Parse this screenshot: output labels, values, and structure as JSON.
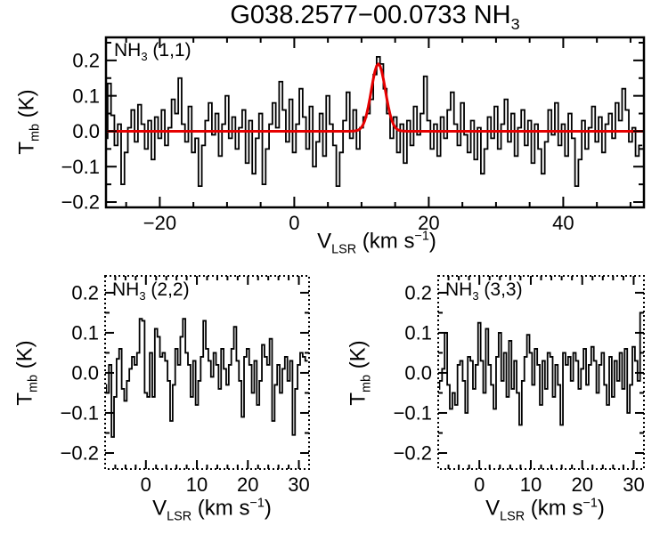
{
  "title": {
    "text": "G038.2577−00.0733 NH",
    "sub": "3"
  },
  "labels": {
    "ylabel": {
      "base": "T",
      "sub": "mb",
      "rest": " (K)"
    },
    "xlabel": {
      "base": "V",
      "sub": "LSR",
      "mid": " (km s",
      "sup": "−1",
      "end": ")"
    }
  },
  "colors": {
    "spectrum": "#000000",
    "fit": "#e60000",
    "background": "#ffffff"
  },
  "chart_data": [
    {
      "id": "nh3_11",
      "type": "line",
      "style": "histogram-step",
      "line_label": {
        "base": "NH",
        "sub": "3",
        "rest": " (1,1)"
      },
      "xlabel": "VLSR (km s-1)",
      "ylabel": "Tmb (K)",
      "xlim": [
        -28,
        52
      ],
      "ylim": [
        -0.215,
        0.265
      ],
      "xticks_major": [
        -20,
        0,
        20,
        40
      ],
      "xtick_minor_step": 5,
      "yticks_major": [
        0.2,
        0.1,
        0.0,
        -0.1,
        -0.2
      ],
      "ytick_minor_step": 0.05,
      "grid": false,
      "x_start": -28,
      "dx": 0.5,
      "values": [
        -0.02,
        0.135,
        0.045,
        -0.04,
        0.02,
        -0.15,
        -0.06,
        0.01,
        0.06,
        -0.03,
        0.075,
        0.02,
        -0.05,
        0.03,
        -0.08,
        0.04,
        -0.02,
        0.06,
        -0.04,
        0.01,
        0.09,
        0.05,
        0.15,
        0.02,
        -0.03,
        0.07,
        -0.06,
        -0.02,
        -0.155,
        -0.04,
        0.03,
        0.08,
        -0.01,
        0.05,
        -0.07,
        0.02,
        0.1,
        -0.02,
        0.04,
        -0.05,
        0.01,
        0.06,
        -0.09,
        0.03,
        -0.12,
        -0.02,
        0.05,
        -0.15,
        -0.05,
        0.02,
        0.08,
        0.01,
        0.14,
        0.06,
        -0.03,
        0.09,
        -0.06,
        0.02,
        0.12,
        0.04,
        -0.05,
        0.07,
        -0.1,
        -0.03,
        0.05,
        -0.07,
        0.1,
        0.02,
        -0.04,
        -0.155,
        -0.06,
        0.03,
        0.11,
        -0.02,
        0.06,
        -0.05,
        0.01,
        0.04,
        0.05,
        0.09,
        0.16,
        0.21,
        0.19,
        0.12,
        0.05,
        -0.02,
        0.04,
        -0.06,
        0.02,
        -0.09,
        0.03,
        -0.04,
        0.07,
        -0.01,
        0.05,
        0.155,
        0.03,
        -0.05,
        0.02,
        -0.07,
        0.04,
        -0.02,
        0.06,
        0.11,
        0.02,
        -0.04,
        0.08,
        -0.01,
        -0.06,
        0.03,
        -0.08,
        0.01,
        -0.12,
        -0.05,
        0.04,
        -0.02,
        0.07,
        -0.05,
        0.02,
        0.09,
        -0.03,
        0.05,
        -0.07,
        0.01,
        0.06,
        -0.04,
        0.03,
        -0.09,
        0.02,
        -0.05,
        -0.12,
        -0.03,
        0.06,
        -0.01,
        0.08,
        -0.04,
        0.02,
        -0.07,
        0.05,
        -0.02,
        -0.155,
        -0.08,
        0.03,
        -0.05,
        0.01,
        0.07,
        -0.03,
        0.04,
        -0.06,
        0.02,
        0.05,
        -0.02,
        0.08,
        0.03,
        0.12,
        0.06,
        -0.03,
        0.01,
        -0.07,
        -0.04
      ],
      "fit": {
        "shape": "gaussian",
        "baseline": 0.0,
        "amplitude": 0.19,
        "center": 12.5,
        "sigma": 1.05
      }
    },
    {
      "id": "nh3_22",
      "type": "line",
      "style": "histogram-step",
      "line_label": {
        "base": "NH",
        "sub": "3",
        "rest": " (2,2)"
      },
      "xlabel": "VLSR (km s-1)",
      "ylabel": "Tmb (K)",
      "xlim": [
        -8,
        32
      ],
      "ylim": [
        -0.24,
        0.242
      ],
      "xticks_major": [
        0,
        10,
        20,
        30
      ],
      "xtick_minor_step": 2,
      "yticks_major": [
        0.2,
        0.1,
        0.0,
        -0.1,
        -0.2
      ],
      "ytick_minor_step": 0.05,
      "grid": false,
      "x_start": -8,
      "dx": 0.5,
      "values": [
        -0.03,
        -0.05,
        0.02,
        -0.16,
        -0.06,
        0.035,
        0.06,
        -0.04,
        -0.07,
        -0.02,
        0.01,
        0.04,
        0.02,
        0.05,
        0.135,
        0.13,
        -0.05,
        -0.06,
        0.05,
        -0.06,
        0.11,
        0.09,
        0.04,
        0.05,
        0.03,
        -0.02,
        -0.12,
        -0.03,
        0.06,
        0.02,
        0.09,
        0.135,
        0.05,
        0.02,
        -0.06,
        0.03,
        -0.08,
        -0.02,
        0.04,
        0.13,
        0.06,
        0.03,
        -0.01,
        0.05,
        0.02,
        -0.04,
        0.06,
        0.01,
        -0.03,
        0.02,
        0.06,
        0.115,
        0.03,
        -0.02,
        -0.11,
        0.04,
        0.06,
        0.02,
        -0.05,
        0.03,
        -0.08,
        -0.02,
        0.07,
        0.04,
        0.02,
        0.085,
        -0.12,
        -0.03,
        0.02,
        -0.05,
        0.01,
        0.04,
        -0.02,
        0.03,
        -0.155,
        -0.04,
        0.02,
        0.05,
        0.04,
        0.03
      ]
    },
    {
      "id": "nh3_33",
      "type": "line",
      "style": "histogram-step",
      "line_label": {
        "base": "NH",
        "sub": "3",
        "rest": " (3,3)"
      },
      "xlabel": "VLSR (km s-1)",
      "ylabel": "Tmb (K)",
      "xlim": [
        -8,
        32
      ],
      "ylim": [
        -0.24,
        0.242
      ],
      "xticks_major": [
        0,
        10,
        20,
        30
      ],
      "xtick_minor_step": 2,
      "yticks_major": [
        0.2,
        0.1,
        0.0,
        -0.1,
        -0.2
      ],
      "ytick_minor_step": 0.05,
      "grid": false,
      "x_start": -8,
      "dx": 0.5,
      "values": [
        -0.04,
        -0.02,
        0.01,
        0.1,
        -0.03,
        -0.09,
        -0.05,
        -0.08,
        0.02,
        0.03,
        -0.02,
        -0.1,
        0.04,
        0.03,
        -0.04,
        0.02,
        0.125,
        0.03,
        -0.05,
        0.11,
        0.02,
        -0.03,
        -0.09,
        0.04,
        0.1,
        -0.02,
        0.05,
        -0.06,
        0.08,
        -0.04,
        0.03,
        -0.05,
        -0.13,
        -0.02,
        0.04,
        0.095,
        0.05,
        -0.03,
        0.06,
        0.02,
        -0.08,
        0.03,
        -0.04,
        0.05,
        0.04,
        -0.06,
        0.02,
        -0.03,
        -0.13,
        0.05,
        0.02,
        0.04,
        -0.02,
        0.05,
        0.03,
        -0.04,
        0.01,
        0.06,
        -0.03,
        0.02,
        0.065,
        0.03,
        -0.05,
        0.02,
        0.05,
        -0.03,
        -0.08,
        0.04,
        -0.06,
        0.03,
        -0.02,
        0.05,
        -0.04,
        0.06,
        -0.1,
        -0.03,
        0.065,
        0.03,
        -0.02,
        0.15
      ]
    }
  ]
}
